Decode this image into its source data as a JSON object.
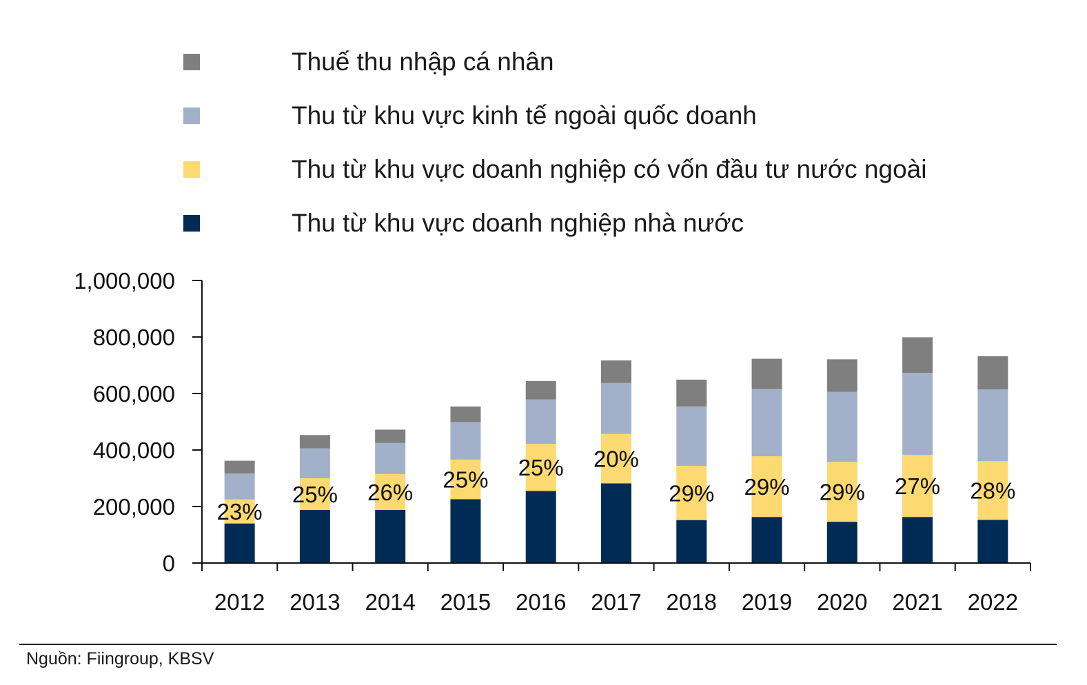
{
  "source_note": "Nguồn: Fiingroup, KBSV",
  "chart_data": {
    "type": "bar",
    "stacked": true,
    "categories": [
      "2012",
      "2013",
      "2014",
      "2015",
      "2016",
      "2017",
      "2018",
      "2019",
      "2020",
      "2021",
      "2022"
    ],
    "series": [
      {
        "name": "Thu từ khu vực doanh nghiệp nhà nước",
        "color": "#002B54",
        "values": [
          140000,
          188000,
          188000,
          226000,
          255000,
          282000,
          152000,
          163000,
          146000,
          163000,
          153000
        ]
      },
      {
        "name": "Thu từ khu vực doanh nghiệp có vốn đầu tư nước ngoài",
        "color": "#FCD971",
        "values": [
          85000,
          112000,
          127000,
          140000,
          167000,
          175000,
          192000,
          215000,
          212000,
          220000,
          208000
        ]
      },
      {
        "name": "Thu từ khu vực kinh tế ngoài quốc doanh",
        "color": "#A2B1C9",
        "values": [
          92000,
          106000,
          110000,
          133000,
          157000,
          180000,
          210000,
          238000,
          248000,
          290000,
          253000
        ]
      },
      {
        "name": "Thuế thu nhập cá nhân",
        "color": "#7F7F7F",
        "values": [
          45000,
          47000,
          47000,
          55000,
          65000,
          80000,
          95000,
          107000,
          115000,
          126000,
          118000
        ]
      }
    ],
    "data_labels": [
      "23%",
      "25%",
      "26%",
      "25%",
      "25%",
      "20%",
      "29%",
      "29%",
      "29%",
      "27%",
      "28%"
    ],
    "legend_order": [
      3,
      2,
      1,
      0
    ],
    "y_ticks": [
      "0",
      "200,000",
      "400,000",
      "600,000",
      "800,000",
      "1,000,000"
    ],
    "y_tick_values": [
      0,
      200000,
      400000,
      600000,
      800000,
      1000000
    ],
    "ylim": [
      0,
      1000000
    ],
    "grid": false,
    "legend_position": "top"
  }
}
